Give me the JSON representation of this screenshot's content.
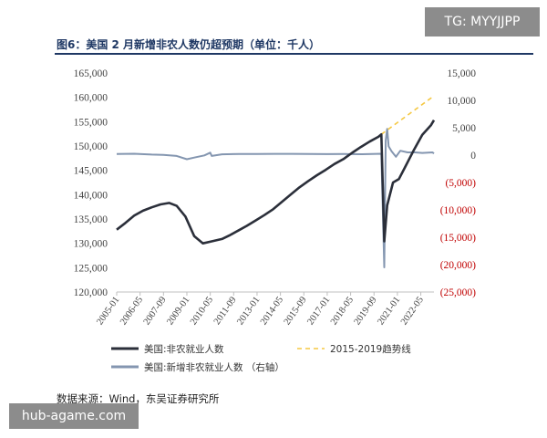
{
  "watermark_top": "TG: MYYJJPP",
  "watermark_bottom": "hub-agame.com",
  "figure_title": "图6：美国 2 月新增非农人数仍超预期（单位：千人）",
  "source": "数据来源：Wind，东吴证券研究所",
  "colors": {
    "title": "#1f3864",
    "employment": "#2b2f3a",
    "trend": "#f5c842",
    "change": "#8496b0",
    "negative_tick": "#c00000",
    "axis": "#bfbfbf"
  },
  "chart_data": {
    "type": "line",
    "title": "图6：美国 2 月新增非农人数仍超预期（单位：千人）",
    "x_ticks": [
      "2005-01",
      "2006-05",
      "2007-09",
      "2009-01",
      "2010-05",
      "2011-09",
      "2013-01",
      "2014-05",
      "2015-09",
      "2017-01",
      "2018-05",
      "2019-09",
      "2021-01",
      "2022-05"
    ],
    "y_left": {
      "ticks": [
        "165,000",
        "160,000",
        "155,000",
        "150,000",
        "145,000",
        "140,000",
        "135,000",
        "130,000",
        "125,000",
        "120,000"
      ],
      "min": 120000,
      "max": 165000
    },
    "y_right": {
      "ticks": [
        "15,000",
        "10,000",
        "5,000",
        "0",
        "(5,000)",
        "(10,000)",
        "(15,000)",
        "(20,000)",
        "(25,000)"
      ],
      "min": -25000,
      "max": 15000
    },
    "legend": {
      "position": "bottom",
      "items": [
        {
          "label": "美国:非农就业人数",
          "style": "solid-dark"
        },
        {
          "label": "2015-2019趋势线",
          "style": "dashed-yellow"
        },
        {
          "label": "美国:新增非农就业人数 （右轴）",
          "style": "solid-gray"
        }
      ]
    },
    "series": [
      {
        "name": "美国:非农就业人数",
        "axis": "left",
        "points": [
          [
            "2005-01",
            132800
          ],
          [
            "2005-07",
            134200
          ],
          [
            "2006-01",
            135700
          ],
          [
            "2006-07",
            136700
          ],
          [
            "2007-01",
            137400
          ],
          [
            "2007-07",
            138000
          ],
          [
            "2008-01",
            138300
          ],
          [
            "2008-06",
            137700
          ],
          [
            "2008-12",
            135500
          ],
          [
            "2009-06",
            131500
          ],
          [
            "2009-12",
            130000
          ],
          [
            "2010-06",
            130400
          ],
          [
            "2011-01",
            130900
          ],
          [
            "2011-06",
            131600
          ],
          [
            "2011-12",
            132600
          ],
          [
            "2012-06",
            133600
          ],
          [
            "2012-12",
            134700
          ],
          [
            "2013-06",
            135800
          ],
          [
            "2013-12",
            137000
          ],
          [
            "2014-06",
            138500
          ],
          [
            "2014-12",
            140000
          ],
          [
            "2015-06",
            141500
          ],
          [
            "2015-12",
            142800
          ],
          [
            "2016-06",
            144000
          ],
          [
            "2016-12",
            145100
          ],
          [
            "2017-06",
            146300
          ],
          [
            "2017-12",
            147300
          ],
          [
            "2018-06",
            148600
          ],
          [
            "2018-12",
            149800
          ],
          [
            "2019-06",
            150900
          ],
          [
            "2019-12",
            151900
          ],
          [
            "2020-02",
            152400
          ],
          [
            "2020-04",
            130400
          ],
          [
            "2020-06",
            137800
          ],
          [
            "2020-10",
            142500
          ],
          [
            "2021-02",
            143200
          ],
          [
            "2021-06",
            145500
          ],
          [
            "2021-12",
            149000
          ],
          [
            "2022-06",
            152300
          ],
          [
            "2022-12",
            154300
          ],
          [
            "2023-02",
            155300
          ]
        ]
      },
      {
        "name": "2015-2019趋势线",
        "axis": "left",
        "points": [
          [
            "2020-02",
            152400
          ],
          [
            "2023-02",
            160300
          ]
        ]
      },
      {
        "name": "美国:新增非农就业人数 （右轴）",
        "axis": "right",
        "points": [
          [
            "2005-01",
            200
          ],
          [
            "2006-01",
            250
          ],
          [
            "2007-01",
            100
          ],
          [
            "2007-09",
            50
          ],
          [
            "2008-06",
            -150
          ],
          [
            "2009-01",
            -750
          ],
          [
            "2009-06",
            -450
          ],
          [
            "2010-01",
            -50
          ],
          [
            "2010-05",
            450
          ],
          [
            "2010-06",
            -150
          ],
          [
            "2011-01",
            150
          ],
          [
            "2012-01",
            200
          ],
          [
            "2013-01",
            200
          ],
          [
            "2014-01",
            230
          ],
          [
            "2015-01",
            230
          ],
          [
            "2016-01",
            200
          ],
          [
            "2017-01",
            180
          ],
          [
            "2018-01",
            200
          ],
          [
            "2019-01",
            170
          ],
          [
            "2020-02",
            250
          ],
          [
            "2020-04",
            -20500
          ],
          [
            "2020-05",
            2700
          ],
          [
            "2020-06",
            4800
          ],
          [
            "2020-07",
            1600
          ],
          [
            "2020-09",
            700
          ],
          [
            "2020-12",
            -300
          ],
          [
            "2021-03",
            800
          ],
          [
            "2021-08",
            500
          ],
          [
            "2022-01",
            500
          ],
          [
            "2022-06",
            400
          ],
          [
            "2023-01",
            500
          ],
          [
            "2023-02",
            300
          ]
        ]
      }
    ]
  }
}
